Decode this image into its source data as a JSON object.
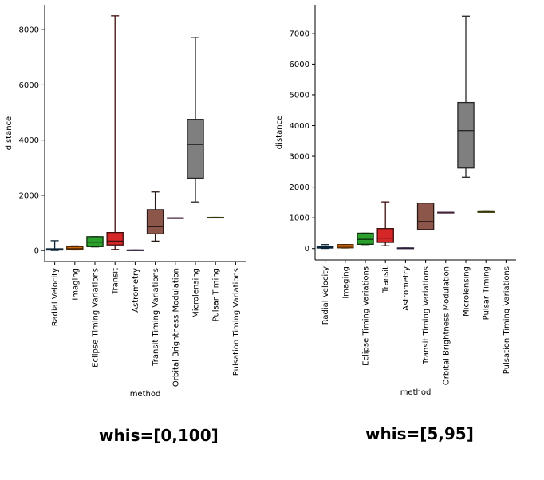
{
  "chart_data": [
    {
      "type": "box",
      "xlabel": "method",
      "ylabel": "distance",
      "ylim": [
        -400,
        8900
      ],
      "yticks": [
        0,
        2000,
        4000,
        6000,
        8000
      ],
      "yticklabels": [
        "0",
        "2000",
        "4000",
        "6000",
        "8000"
      ],
      "caption": "whis=[0,100]",
      "categories": [
        "Radial Velocity",
        "Imaging",
        "Eclipse Timing Variations",
        "Transit",
        "Astrometry",
        "Transit Timing Variations",
        "Orbital Brightness Modulation",
        "Microlensing",
        "Pulsar Timing",
        "Pulsation Timing Variations"
      ],
      "boxes": [
        {
          "min": 2,
          "q1": 18,
          "median": 40,
          "q3": 62,
          "max": 354,
          "color": "#1f77b4"
        },
        {
          "min": 20,
          "q1": 40,
          "median": 70,
          "q3": 130,
          "max": 165,
          "color": "#ff7f0e"
        },
        {
          "min": 130,
          "q1": 140,
          "median": 300,
          "q3": 500,
          "max": 500,
          "color": "#2ca02c"
        },
        {
          "min": 38,
          "q1": 200,
          "median": 340,
          "q3": 650,
          "max": 8500,
          "color": "#d62728"
        },
        {
          "min": 15,
          "q1": 15,
          "median": 18,
          "q3": 20,
          "max": 20,
          "color": "#9467bd"
        },
        {
          "min": 340,
          "q1": 600,
          "median": 860,
          "q3": 1480,
          "max": 2120,
          "color": "#8c564b"
        },
        {
          "min": 1180,
          "q1": 1180,
          "median": 1180,
          "q3": 1180,
          "max": 1180,
          "color": "#e377c2"
        },
        {
          "min": 1760,
          "q1": 2620,
          "median": 3840,
          "q3": 4750,
          "max": 7720,
          "color": "#7f7f7f"
        },
        {
          "min": 1200,
          "q1": 1200,
          "median": 1200,
          "q3": 1200,
          "max": 1200,
          "color": "#bcbd22"
        },
        null
      ]
    },
    {
      "type": "box",
      "xlabel": "method",
      "ylabel": "distance",
      "ylim": [
        -370,
        7930
      ],
      "yticks": [
        0,
        1000,
        2000,
        3000,
        4000,
        5000,
        6000,
        7000
      ],
      "yticklabels": [
        "0",
        "1000",
        "2000",
        "3000",
        "4000",
        "5000",
        "6000",
        "7000"
      ],
      "caption": "whis=[5,95]",
      "categories": [
        "Radial Velocity",
        "Imaging",
        "Eclipse Timing Variations",
        "Transit",
        "Astrometry",
        "Transit Timing Variations",
        "Orbital Brightness Modulation",
        "Microlensing",
        "Pulsar Timing",
        "Pulsation Timing Variations"
      ],
      "boxes": [
        {
          "min": 5,
          "q1": 18,
          "median": 40,
          "q3": 62,
          "max": 130,
          "color": "#1f77b4"
        },
        {
          "min": 20,
          "q1": 25,
          "median": 70,
          "q3": 130,
          "max": 130,
          "color": "#ff7f0e"
        },
        {
          "min": 130,
          "q1": 140,
          "median": 300,
          "q3": 500,
          "max": 500,
          "color": "#2ca02c"
        },
        {
          "min": 90,
          "q1": 200,
          "median": 340,
          "q3": 650,
          "max": 1520,
          "color": "#d62728"
        },
        {
          "min": 15,
          "q1": 15,
          "median": 18,
          "q3": 20,
          "max": 20,
          "color": "#9467bd"
        },
        {
          "min": 620,
          "q1": 620,
          "median": 880,
          "q3": 1480,
          "max": 1480,
          "color": "#8c564b"
        },
        {
          "min": 1180,
          "q1": 1180,
          "median": 1180,
          "q3": 1180,
          "max": 1180,
          "color": "#e377c2"
        },
        {
          "min": 2320,
          "q1": 2620,
          "median": 3840,
          "q3": 4750,
          "max": 7560,
          "color": "#7f7f7f"
        },
        {
          "min": 1200,
          "q1": 1200,
          "median": 1200,
          "q3": 1200,
          "max": 1200,
          "color": "#bcbd22"
        },
        null
      ]
    }
  ]
}
